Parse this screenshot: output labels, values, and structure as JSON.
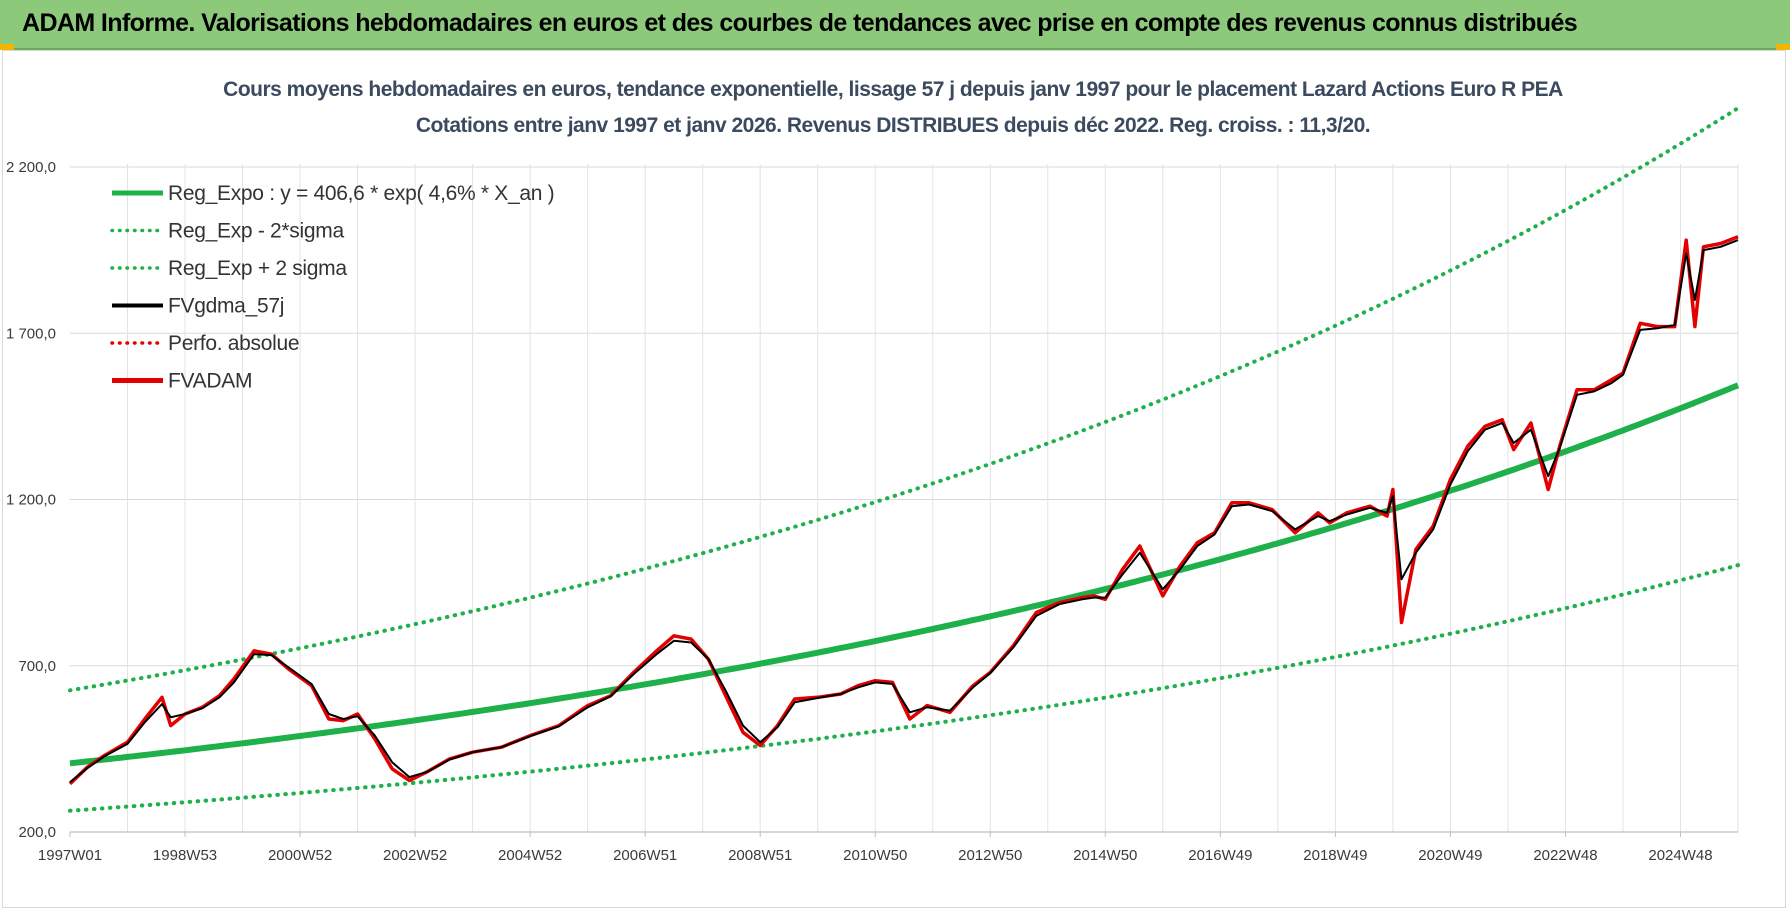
{
  "header": {
    "banner_title": "ADAM Informe. Valorisations hebdomadaires en euros et des courbes de tendances avec prise en compte des revenus connus distribués"
  },
  "chart_data": {
    "type": "line",
    "title": "Cours moyens hebdomadaires en euros, tendance exponentielle, lissage 57 j depuis janv 1997  pour le placement Lazard Actions Euro R PEA",
    "subtitle": "Cotations entre janv 1997 et janv 2026. Revenus DISTRIBUES depuis déc 2022.  Reg. croiss. : 11,3/20.",
    "xlabel": "",
    "ylabel": "",
    "ylim": [
      200,
      2200
    ],
    "xlim": [
      1997.0,
      2026.0
    ],
    "y_ticks": [
      {
        "value": 200,
        "label": "200,0"
      },
      {
        "value": 700,
        "label": "700,0"
      },
      {
        "value": 1200,
        "label": "1 200,0"
      },
      {
        "value": 1700,
        "label": "1 700,0"
      },
      {
        "value": 2200,
        "label": "2 200,0"
      }
    ],
    "x_ticks": [
      {
        "value": 1997.0,
        "label": "1997W01"
      },
      {
        "value": 1999.0,
        "label": "1998W53"
      },
      {
        "value": 2001.0,
        "label": "2000W52"
      },
      {
        "value": 2003.0,
        "label": "2002W52"
      },
      {
        "value": 2005.0,
        "label": "2004W52"
      },
      {
        "value": 2007.0,
        "label": "2006W51"
      },
      {
        "value": 2009.0,
        "label": "2008W51"
      },
      {
        "value": 2011.0,
        "label": "2010W50"
      },
      {
        "value": 2013.0,
        "label": "2012W50"
      },
      {
        "value": 2015.0,
        "label": "2014W50"
      },
      {
        "value": 2017.0,
        "label": "2016W49"
      },
      {
        "value": 2019.0,
        "label": "2018W49"
      },
      {
        "value": 2021.0,
        "label": "2020W49"
      },
      {
        "value": 2023.0,
        "label": "2022W48"
      },
      {
        "value": 2025.0,
        "label": "2024W48"
      }
    ],
    "grid": true,
    "legend_position": "top-left",
    "legend": [
      {
        "label": "Reg_Expo : y = 406,6 * exp( 4,6% *  X_an )",
        "color": "#1db04b",
        "style": "solid-thick"
      },
      {
        "label": "Reg_Exp - 2*sigma",
        "color": "#1db04b",
        "style": "dotted"
      },
      {
        "label": "Reg_Exp + 2 sigma",
        "color": "#1db04b",
        "style": "dotted"
      },
      {
        "label": "FVgdma_57j",
        "color": "#000000",
        "style": "solid"
      },
      {
        "label": "Perfo. absolue",
        "color": "#e30000",
        "style": "dotted"
      },
      {
        "label": "FVADAM",
        "color": "#e30000",
        "style": "solid-thick"
      }
    ],
    "regression": {
      "a": 406.6,
      "rate": 0.046,
      "sigma_factor": 1.54
    },
    "series": [
      {
        "name": "FVADAM",
        "color": "#e30000",
        "x": [
          1997.0,
          1997.3,
          1997.6,
          1998.0,
          1998.3,
          1998.6,
          1998.75,
          1999.0,
          1999.3,
          1999.6,
          1999.85,
          2000.2,
          2000.5,
          2000.8,
          2001.2,
          2001.5,
          2001.75,
          2002.0,
          2002.3,
          2002.6,
          2002.9,
          2003.2,
          2003.6,
          2004.0,
          2004.5,
          2005.0,
          2005.5,
          2006.0,
          2006.4,
          2006.8,
          2007.2,
          2007.5,
          2007.8,
          2008.1,
          2008.4,
          2008.7,
          2009.0,
          2009.3,
          2009.6,
          2010.0,
          2010.4,
          2010.7,
          2011.0,
          2011.3,
          2011.6,
          2011.9,
          2012.3,
          2012.7,
          2013.0,
          2013.4,
          2013.8,
          2014.2,
          2014.6,
          2014.8,
          2015.0,
          2015.3,
          2015.6,
          2016.0,
          2016.3,
          2016.6,
          2016.9,
          2017.2,
          2017.5,
          2017.9,
          2018.3,
          2018.7,
          2018.9,
          2019.2,
          2019.6,
          2019.9,
          2020.0,
          2020.15,
          2020.4,
          2020.7,
          2021.0,
          2021.3,
          2021.6,
          2021.9,
          2022.1,
          2022.4,
          2022.7,
          2022.9,
          2023.2,
          2023.5,
          2023.8,
          2024.0,
          2024.3,
          2024.6,
          2024.9,
          2025.1,
          2025.25,
          2025.4,
          2025.7,
          2026.0
        ],
        "values": [
          345,
          395,
          430,
          470,
          540,
          605,
          520,
          555,
          575,
          610,
          660,
          745,
          735,
          690,
          640,
          540,
          535,
          555,
          480,
          390,
          355,
          380,
          420,
          440,
          455,
          490,
          520,
          580,
          610,
          680,
          745,
          790,
          780,
          720,
          610,
          500,
          460,
          520,
          600,
          605,
          615,
          640,
          655,
          650,
          540,
          580,
          560,
          640,
          680,
          760,
          860,
          890,
          905,
          910,
          900,
          990,
          1060,
          910,
          1000,
          1070,
          1100,
          1190,
          1190,
          1170,
          1100,
          1160,
          1130,
          1160,
          1180,
          1150,
          1230,
          830,
          1050,
          1120,
          1260,
          1360,
          1420,
          1440,
          1350,
          1430,
          1230,
          1360,
          1530,
          1530,
          1560,
          1580,
          1730,
          1720,
          1720,
          1980,
          1720,
          1960,
          1970,
          1990
        ]
      },
      {
        "name": "FVgdma_57j",
        "color": "#000000",
        "x": [
          1997.0,
          1997.3,
          1997.6,
          1998.0,
          1998.3,
          1998.6,
          1998.75,
          1999.0,
          1999.3,
          1999.6,
          1999.85,
          2000.2,
          2000.5,
          2000.8,
          2001.2,
          2001.5,
          2001.75,
          2002.0,
          2002.3,
          2002.6,
          2002.9,
          2003.2,
          2003.6,
          2004.0,
          2004.5,
          2005.0,
          2005.5,
          2006.0,
          2006.4,
          2006.8,
          2007.2,
          2007.5,
          2007.8,
          2008.1,
          2008.4,
          2008.7,
          2009.0,
          2009.3,
          2009.6,
          2010.0,
          2010.4,
          2010.7,
          2011.0,
          2011.3,
          2011.6,
          2011.9,
          2012.3,
          2012.7,
          2013.0,
          2013.4,
          2013.8,
          2014.2,
          2014.6,
          2014.8,
          2015.0,
          2015.3,
          2015.6,
          2016.0,
          2016.3,
          2016.6,
          2016.9,
          2017.2,
          2017.5,
          2017.9,
          2018.3,
          2018.7,
          2018.9,
          2019.2,
          2019.6,
          2019.9,
          2020.0,
          2020.15,
          2020.4,
          2020.7,
          2021.0,
          2021.3,
          2021.6,
          2021.9,
          2022.1,
          2022.4,
          2022.7,
          2022.9,
          2023.2,
          2023.5,
          2023.8,
          2024.0,
          2024.3,
          2024.6,
          2024.9,
          2025.1,
          2025.25,
          2025.4,
          2025.7,
          2026.0
        ],
        "values": [
          350,
          392,
          428,
          465,
          530,
          585,
          545,
          555,
          572,
          605,
          650,
          735,
          732,
          695,
          645,
          555,
          540,
          548,
          490,
          410,
          365,
          380,
          418,
          440,
          455,
          488,
          518,
          575,
          608,
          675,
          735,
          775,
          770,
          720,
          625,
          520,
          470,
          515,
          590,
          603,
          615,
          635,
          650,
          645,
          560,
          575,
          565,
          635,
          678,
          755,
          850,
          885,
          900,
          905,
          905,
          975,
          1040,
          930,
          990,
          1060,
          1095,
          1180,
          1185,
          1165,
          1110,
          1150,
          1135,
          1155,
          1175,
          1160,
          1210,
          960,
          1040,
          1110,
          1245,
          1345,
          1410,
          1430,
          1370,
          1410,
          1270,
          1355,
          1515,
          1525,
          1550,
          1575,
          1710,
          1715,
          1725,
          1940,
          1800,
          1950,
          1960,
          1980
        ]
      }
    ]
  }
}
